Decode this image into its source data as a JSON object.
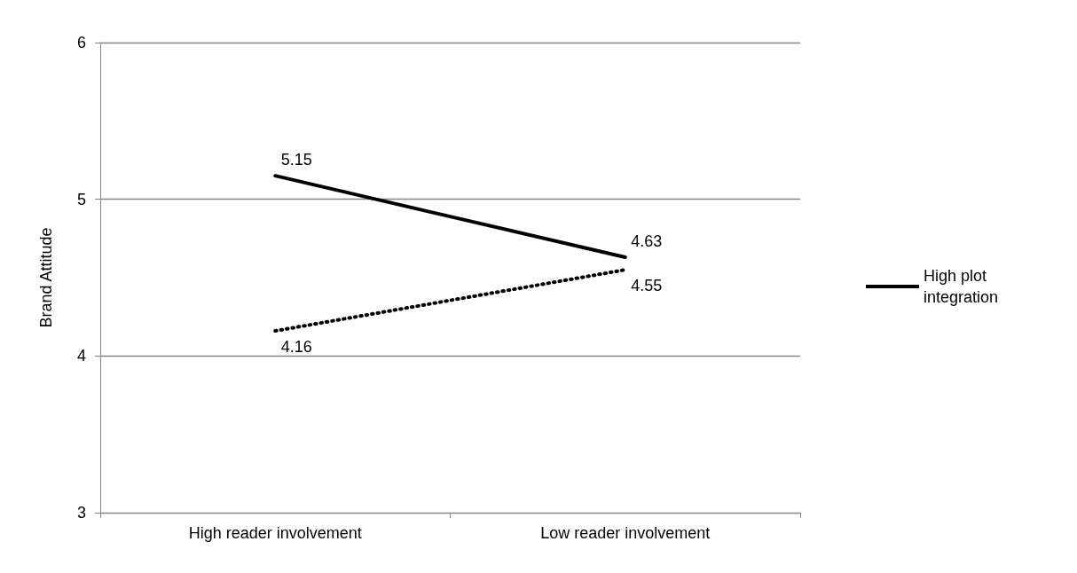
{
  "chart_data": {
    "type": "line",
    "ylabel": "Brand Attitude",
    "categories": [
      "High reader involvement",
      "Low reader involvement"
    ],
    "series": [
      {
        "name": "High plot integration",
        "color": "#000000",
        "values": [
          5.15,
          4.63
        ],
        "line_style": "solid"
      },
      {
        "color": "#000000",
        "values": [
          4.16,
          4.55
        ],
        "line_style": "dotted"
      }
    ],
    "ylim": [
      3,
      6
    ],
    "yticks": [
      3,
      4,
      5,
      6
    ],
    "grid": "y",
    "legend": "right",
    "marker": "none",
    "data_labels": true
  }
}
